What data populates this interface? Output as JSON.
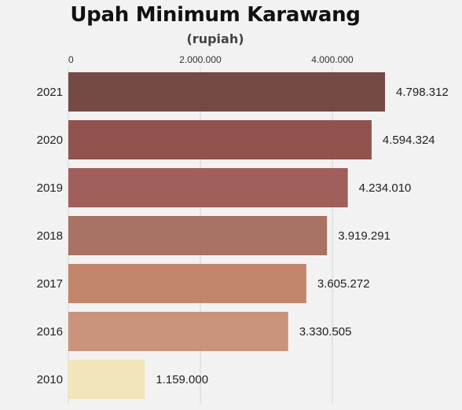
{
  "chart_data": {
    "type": "bar",
    "orientation": "horizontal",
    "title": "Upah Minimum Karawang",
    "subtitle": "(rupiah)",
    "categories": [
      "2021",
      "2020",
      "2019",
      "2018",
      "2017",
      "2016",
      "2010"
    ],
    "values": [
      4798312,
      4594324,
      4234010,
      3919291,
      3605272,
      3330505,
      1159000
    ],
    "value_labels": [
      "4.798.312",
      "4.594.324",
      "4.234.010",
      "3.919.291",
      "3.605.272",
      "3.330.505",
      "1.159.000"
    ],
    "colors": [
      "#6e3f3a",
      "#8a4a44",
      "#9b5652",
      "#a36a5c",
      "#bf7f65",
      "#c68e74",
      "#f1e4b5"
    ],
    "x_ticks": [
      0,
      2000000,
      4000000
    ],
    "x_tick_labels": [
      "0",
      "2.000.000",
      "4.000.000"
    ],
    "xlim": [
      0,
      5000000
    ],
    "grid": true,
    "x_axis_position": "top"
  }
}
